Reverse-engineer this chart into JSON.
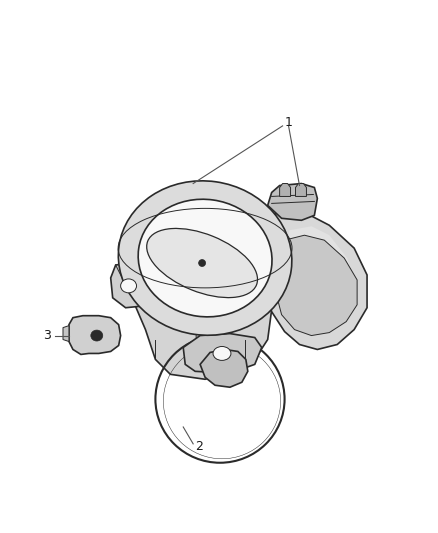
{
  "bg_color": "#ffffff",
  "line_color": "#2a2a2a",
  "fill_light": "#e8e8e8",
  "fill_mid": "#d8d8d8",
  "fill_dark": "#c5c5c5",
  "fill_white": "#f8f8f8",
  "label_color": "#1a1a1a",
  "figsize": [
    4.38,
    5.33
  ],
  "dpi": 100,
  "label1": "1",
  "label2": "2",
  "label3": "3"
}
